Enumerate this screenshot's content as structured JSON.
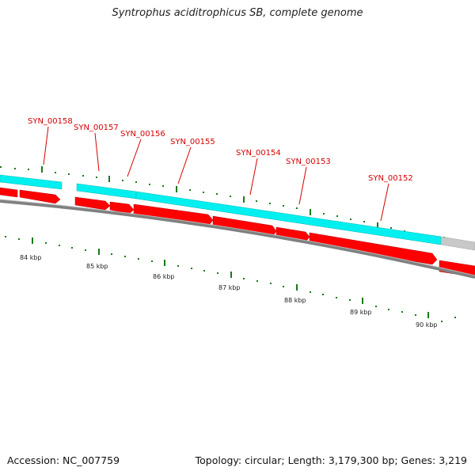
{
  "title": "Syntrophus aciditrophicus SB, complete genome",
  "footer": {
    "accession": "Accession: NC_007759",
    "topology": "Topology: circular; Length: 3,179,300 bp; Genes: 3,219"
  },
  "colors": {
    "gene_label": "#d40000",
    "cds_arrow": "#ff0000",
    "gene_band": "#00f0f0",
    "unselected_band": "#c0c0c0",
    "backbone": "#808080",
    "tick": "#1a7a1a"
  },
  "gene_labels": [
    "SYN_00158",
    "SYN_00157",
    "SYN_00156",
    "SYN_00155",
    "SYN_00154",
    "SYN_00153",
    "SYN_00152"
  ],
  "scale_labels": [
    "84 kbp",
    "85 kbp",
    "86 kbp",
    "87 kbp",
    "88 kbp",
    "89 kbp",
    "90 kbp"
  ]
}
